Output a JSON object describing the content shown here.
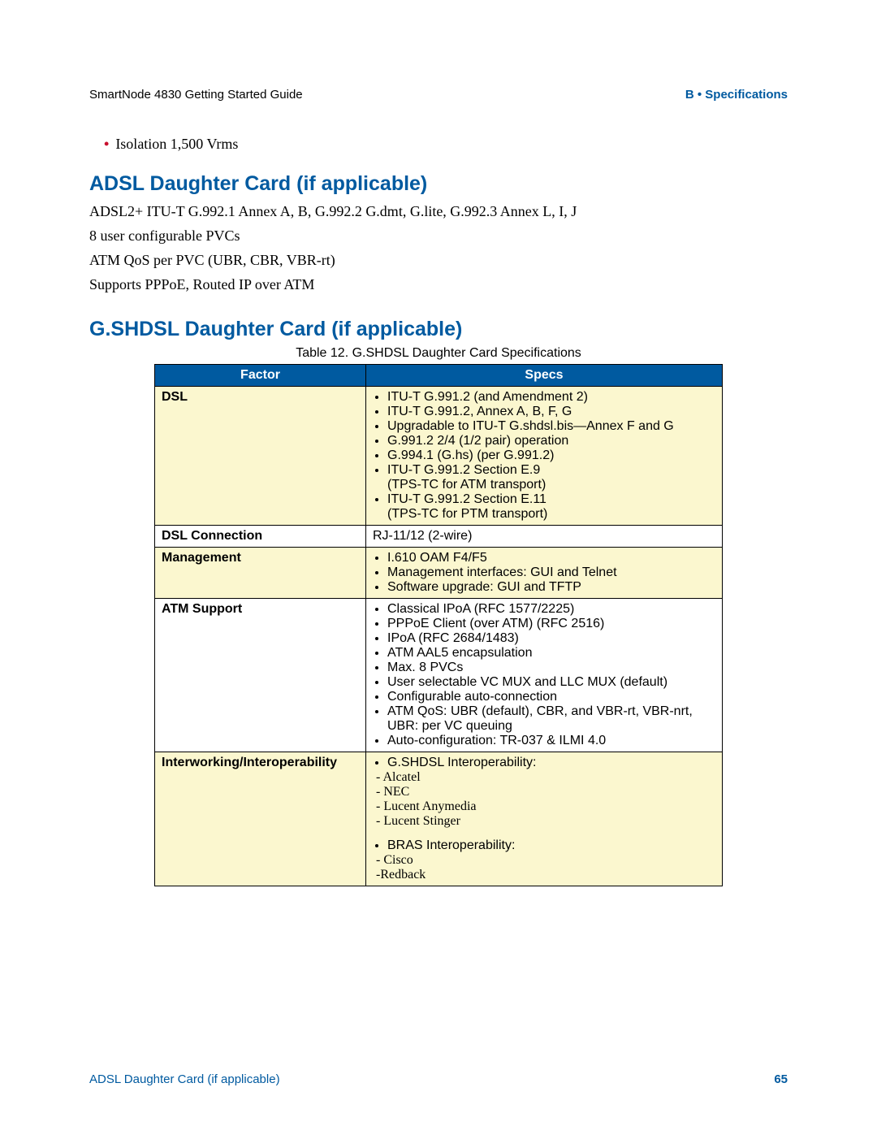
{
  "header": {
    "left": "SmartNode 4830 Getting Started Guide",
    "right": "B • Specifications"
  },
  "top_bullet": "Isolation 1,500 Vrms",
  "adsl": {
    "heading": "ADSL Daughter Card (if applicable)",
    "lines": [
      "ADSL2+ ITU-T G.992.1 Annex A, B, G.992.2 G.dmt, G.lite, G.992.3 Annex L, I, J",
      "8 user configurable PVCs",
      "ATM QoS per PVC (UBR, CBR, VBR-rt)",
      "Supports PPPoE, Routed IP over ATM"
    ]
  },
  "gshdsl": {
    "heading": "G.SHDSL Daughter Card (if applicable)",
    "caption": "Table 12. G.SHDSL Daughter Card Specifications",
    "columns": [
      "Factor",
      "Specs"
    ],
    "rows": [
      {
        "factor": "DSL",
        "bg": "yellow",
        "bullets": [
          "ITU-T G.991.2 (and Amendment 2)",
          "ITU-T G.991.2, Annex A, B, F, G",
          "Upgradable to ITU-T G.shdsl.bis—Annex F and G",
          "G.991.2 2/4 (1/2 pair) operation",
          "G.994.1 (G.hs) (per G.991.2)",
          "ITU-T G.991.2 Section E.9\n(TPS-TC for ATM transport)",
          "ITU-T G.991.2 Section E.11\n(TPS-TC for PTM transport)"
        ]
      },
      {
        "factor": "DSL Connection",
        "bg": "white",
        "plain": "RJ-11/12 (2-wire)"
      },
      {
        "factor": "Management",
        "bg": "yellow",
        "bullets": [
          "I.610 OAM F4/F5",
          "Management interfaces:  GUI and Telnet",
          "Software upgrade:  GUI and TFTP"
        ]
      },
      {
        "factor": "ATM Support",
        "bg": "white",
        "bullets": [
          "Classical IPoA (RFC 1577/2225)",
          "PPPoE Client (over ATM) (RFC 2516)",
          "IPoA (RFC 2684/1483)",
          "ATM AAL5 encapsulation",
          "Max. 8 PVCs",
          "User selectable VC MUX and LLC MUX (default)",
          "Configurable auto-connection",
          "ATM QoS:  UBR (default), CBR, and VBR-rt, VBR-nrt, UBR:  per VC queuing",
          "Auto-configuration:  TR-037 & ILMI 4.0"
        ]
      },
      {
        "factor": "Interworking/Interoperability",
        "bg": "yellow",
        "groups": [
          {
            "lead": "G.SHDSL Interoperability:",
            "subs": [
              "- Alcatel",
              "- NEC",
              "- Lucent Anymedia",
              "- Lucent Stinger"
            ]
          },
          {
            "lead": "BRAS Interoperability:",
            "subs": [
              "- Cisco",
              "-Redback"
            ]
          }
        ]
      }
    ]
  },
  "footer": {
    "left": "ADSL Daughter Card (if applicable)",
    "page": "65"
  },
  "colors": {
    "brand_blue": "#005aa0",
    "bullet_red": "#c8102e",
    "row_yellow": "#fbf7cf",
    "row_white": "#ffffff"
  }
}
